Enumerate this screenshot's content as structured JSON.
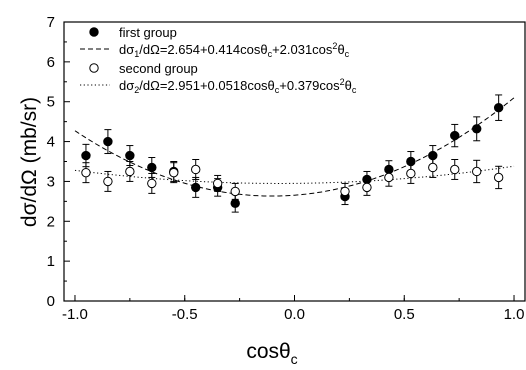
{
  "chart_data": {
    "type": "scatter",
    "xlim": [
      -1.05,
      1.05
    ],
    "ylim": [
      0,
      7
    ],
    "xticks": [
      "-1.0",
      "-0.5",
      "0.0",
      "0.5",
      "1.0"
    ],
    "yticks": [
      "0",
      "1",
      "2",
      "3",
      "4",
      "5",
      "6",
      "7"
    ],
    "grid": false,
    "legend_position": "top-left",
    "xlabel": {
      "main": "cosθ",
      "sub": "c"
    },
    "ylabel": "dσ/dΩ (mb/sr)",
    "series": [
      {
        "name": "first group",
        "marker": "filled-circle",
        "color": "#000000",
        "x": [
          -0.95,
          -0.85,
          -0.75,
          -0.65,
          -0.55,
          -0.45,
          -0.35,
          -0.27,
          0.23,
          0.33,
          0.43,
          0.53,
          0.63,
          0.73,
          0.83,
          0.93
        ],
        "y": [
          3.65,
          4.0,
          3.65,
          3.35,
          3.25,
          2.85,
          2.85,
          2.45,
          2.62,
          3.05,
          3.3,
          3.5,
          3.65,
          4.15,
          4.32,
          4.85
        ],
        "err": [
          0.28,
          0.3,
          0.25,
          0.25,
          0.25,
          0.25,
          0.22,
          0.22,
          0.2,
          0.2,
          0.22,
          0.25,
          0.25,
          0.28,
          0.3,
          0.32
        ]
      },
      {
        "name": "second group",
        "marker": "open-circle",
        "color": "#000000",
        "x": [
          -0.95,
          -0.85,
          -0.75,
          -0.65,
          -0.55,
          -0.45,
          -0.35,
          -0.27,
          0.23,
          0.33,
          0.43,
          0.53,
          0.63,
          0.73,
          0.83,
          0.93
        ],
        "y": [
          3.22,
          3.0,
          3.25,
          2.95,
          3.22,
          3.3,
          2.95,
          2.75,
          2.75,
          2.85,
          3.1,
          3.2,
          3.35,
          3.3,
          3.25,
          3.1
        ],
        "err": [
          0.25,
          0.25,
          0.25,
          0.25,
          0.25,
          0.25,
          0.2,
          0.2,
          0.2,
          0.2,
          0.22,
          0.25,
          0.25,
          0.25,
          0.28,
          0.28
        ]
      }
    ],
    "fits": [
      {
        "label_main": "dσ",
        "label_sub": "1",
        "label_rest": "/dΩ=2.654+0.414cosθ",
        "label_sub2": "c",
        "label_rest2": "+2.031cos",
        "label_sup": "2",
        "label_end": "θ",
        "label_sub3": "c",
        "style": "dashed",
        "coefficients": [
          2.654,
          0.414,
          2.031
        ]
      },
      {
        "label_main": "dσ",
        "label_sub": "2",
        "label_rest": "/dΩ=2.951+0.0518cosθ",
        "label_sub2": "c",
        "label_rest2": "+0.379cos",
        "label_sup": "2",
        "label_end": "θ",
        "label_sub3": "c",
        "style": "dotted",
        "coefficients": [
          2.951,
          0.0518,
          0.379
        ]
      }
    ]
  }
}
